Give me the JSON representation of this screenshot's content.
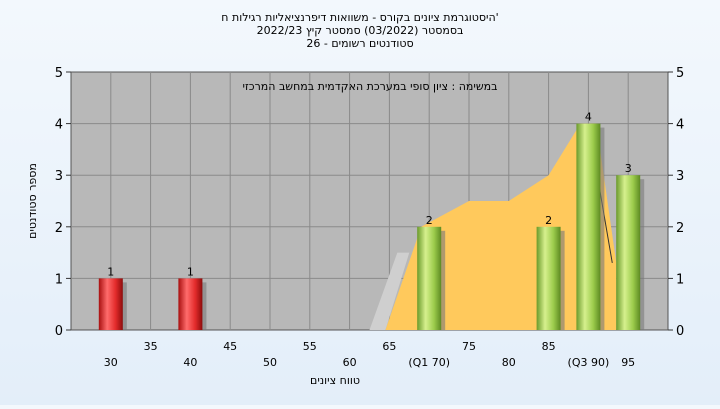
{
  "chart_data": {
    "type": "bar",
    "title_lines": [
      "היסטוגרמת ציונים בקורס - משוואות דיפרנציאליות רגילות ח'",
      "בסמסטר  (03/2022)  סמסטר קיץ  2022/23",
      "סטודנטים רשומים - 26"
    ],
    "annotation": "במשימה : ציון סופי במערכת האקדמית במחשב המרכזי",
    "xlabel": "טווח ציונים",
    "ylabel": "מספר סטודנטים",
    "ylim": [
      0,
      5
    ],
    "yticks": [
      0,
      1,
      2,
      3,
      4,
      5
    ],
    "xlim": [
      25,
      100
    ],
    "x_tick_labels_upper": [
      "35",
      "45",
      "55",
      "65",
      "75",
      "85"
    ],
    "x_tick_labels_lower": [
      "30",
      "40",
      "50",
      "60",
      "(Q1 70)",
      "80",
      "(Q3 90)",
      "95"
    ],
    "bars": [
      {
        "x": 30,
        "value": 1,
        "color": "red"
      },
      {
        "x": 40,
        "value": 1,
        "color": "red"
      },
      {
        "x": 70,
        "value": 2,
        "color": "green"
      },
      {
        "x": 85,
        "value": 2,
        "color": "green"
      },
      {
        "x": 90,
        "value": 4,
        "color": "green"
      },
      {
        "x": 95,
        "value": 3,
        "color": "green"
      }
    ],
    "area": {
      "color": "#ffc95c",
      "points": [
        [
          64.5,
          0
        ],
        [
          69,
          2
        ],
        [
          75,
          2.5
        ],
        [
          80,
          2.5
        ],
        [
          85,
          3
        ],
        [
          89,
          4
        ],
        [
          91,
          4
        ],
        [
          93.5,
          1.3
        ],
        [
          93.5,
          0
        ]
      ]
    },
    "gray_area": {
      "color": "#cfcfcf",
      "points": [
        [
          62.5,
          0
        ],
        [
          64.5,
          0
        ],
        [
          67.5,
          1.5
        ],
        [
          66,
          1.5
        ]
      ]
    },
    "trend_line": {
      "points": [
        [
          90,
          4
        ],
        [
          93,
          1.3
        ]
      ]
    },
    "grid": true,
    "plot_background": "#b8b8b8",
    "red_bar": "#e32b2b",
    "green_bar": "#9ccc4c"
  }
}
